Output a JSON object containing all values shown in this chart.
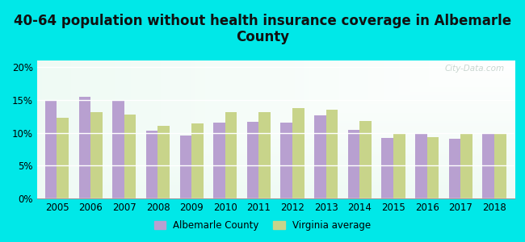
{
  "title": "40-64 population without health insurance coverage in Albemarle\nCounty",
  "years": [
    2005,
    2006,
    2007,
    2008,
    2009,
    2010,
    2011,
    2012,
    2013,
    2014,
    2015,
    2016,
    2017,
    2018
  ],
  "albemarle": [
    14.8,
    15.5,
    14.8,
    10.3,
    9.6,
    11.5,
    11.7,
    11.5,
    12.7,
    10.4,
    9.2,
    10.0,
    9.1,
    9.8
  ],
  "virginia": [
    12.3,
    13.2,
    12.8,
    11.1,
    11.4,
    13.2,
    13.2,
    13.7,
    13.5,
    11.8,
    9.8,
    9.3,
    9.8,
    9.8
  ],
  "albemarle_color": "#b8a0d0",
  "virginia_color": "#c8d48a",
  "background_outer": "#00e8e8",
  "ylim": [
    0,
    21
  ],
  "yticks": [
    0,
    5,
    10,
    15,
    20
  ],
  "ytick_labels": [
    "0%",
    "5%",
    "10%",
    "15%",
    "20%"
  ],
  "legend_albemarle": "Albemarle County",
  "legend_virginia": "Virginia average",
  "bar_width": 0.35,
  "title_fontsize": 12,
  "tick_fontsize": 8.5
}
